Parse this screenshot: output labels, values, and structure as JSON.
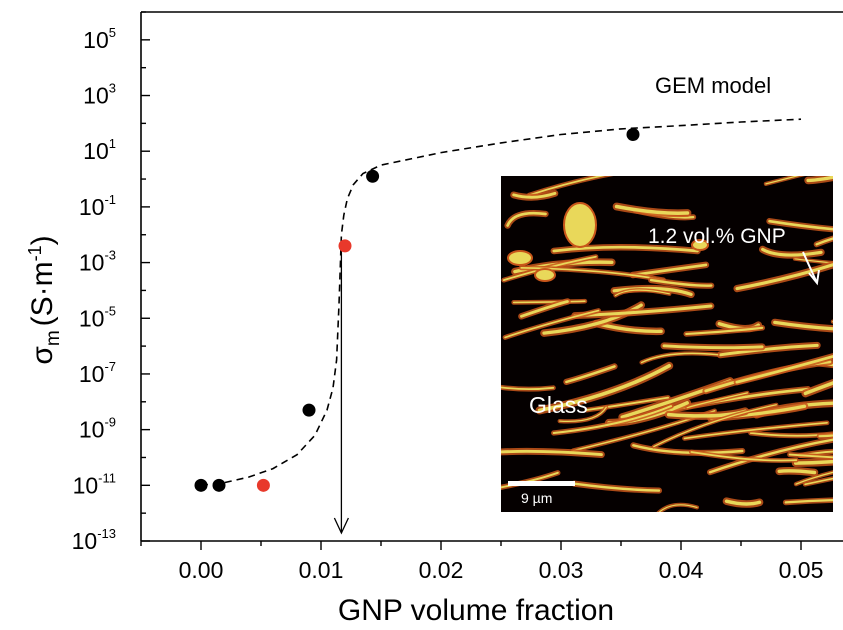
{
  "chart_data": {
    "type": "scatter",
    "xlabel": "GNP volume fraction",
    "ylabel": {
      "main": "σ",
      "sub": "m",
      "unit": "(S·m",
      "unit_sup": "-1",
      "unit_close": ")"
    },
    "xlim": [
      -0.005,
      0.0535
    ],
    "ylim_log10": [
      -13,
      6
    ],
    "y_scale": "log",
    "x_ticks": [
      "0.00",
      "0.01",
      "0.02",
      "0.03",
      "0.04",
      "0.05"
    ],
    "x_tick_values": [
      0,
      0.01,
      0.02,
      0.03,
      0.04,
      0.05
    ],
    "y_tick_exponents": [
      -13,
      -11,
      -9,
      -7,
      -5,
      -3,
      -1,
      1,
      3,
      5
    ],
    "series": [
      {
        "color": "#000000",
        "points": [
          {
            "x": 0.0,
            "log10_y": -11
          },
          {
            "x": 0.0015,
            "log10_y": -11
          },
          {
            "x": 0.009,
            "log10_y": -8.3
          },
          {
            "x": 0.0143,
            "log10_y": 0.1
          },
          {
            "x": 0.036,
            "log10_y": 1.6
          }
        ]
      },
      {
        "color": "#e8392b",
        "points": [
          {
            "x": 0.0052,
            "log10_y": -11
          },
          {
            "x": 0.012,
            "log10_y": -2.4
          }
        ]
      }
    ],
    "model_curve": {
      "label": "GEM model",
      "style": "dashed",
      "points": [
        [
          0.0,
          -11.0
        ],
        [
          0.002,
          -10.9
        ],
        [
          0.004,
          -10.7
        ],
        [
          0.006,
          -10.4
        ],
        [
          0.008,
          -9.9
        ],
        [
          0.0095,
          -9.2
        ],
        [
          0.0105,
          -8.3
        ],
        [
          0.011,
          -7.5
        ],
        [
          0.0113,
          -6.5
        ],
        [
          0.0115,
          -4.5
        ],
        [
          0.0117,
          -2.0
        ],
        [
          0.0119,
          -1.3
        ],
        [
          0.0122,
          -0.7
        ],
        [
          0.0127,
          -0.2
        ],
        [
          0.0135,
          0.2
        ],
        [
          0.015,
          0.5
        ],
        [
          0.02,
          0.95
        ],
        [
          0.025,
          1.3
        ],
        [
          0.03,
          1.6
        ],
        [
          0.035,
          1.8
        ],
        [
          0.04,
          1.92
        ],
        [
          0.045,
          2.05
        ],
        [
          0.05,
          2.15
        ]
      ]
    },
    "threshold_arrow": {
      "x": 0.0117,
      "from_log10_y": -2.4,
      "to_log10_y": -13
    },
    "inset": {
      "labels": {
        "region": "Glass",
        "composition": "1.2 vol.% GNP",
        "scale_bar": "9 µm"
      },
      "colors": {
        "background": "#050000",
        "phase": "#e9d85a",
        "edge": "#c8561a"
      }
    }
  }
}
